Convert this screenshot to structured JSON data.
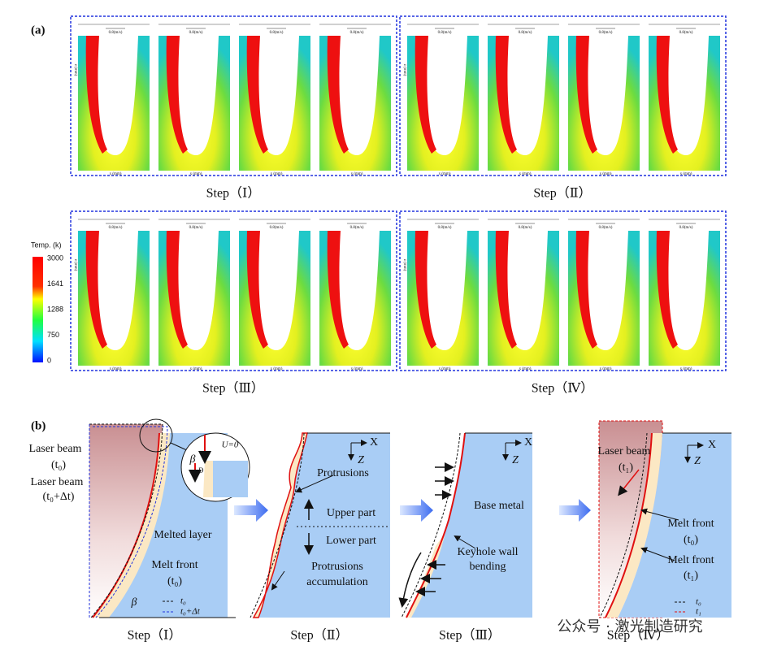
{
  "panel_a": {
    "label": "(a)",
    "steps": [
      "Step（Ⅰ）",
      "Step（Ⅱ）",
      "Step（Ⅲ）",
      "Step（Ⅳ）"
    ],
    "velocity_label": "0.8(m/s)",
    "x_axis": "x (mm)",
    "z_axis": "z (mm)",
    "colorbar": {
      "title": "Temp. (k)",
      "ticks": [
        3000,
        1641,
        1288,
        750,
        0
      ]
    }
  },
  "panel_b": {
    "label": "(b)",
    "steps": [
      "Step（Ⅰ）",
      "Step（Ⅱ）",
      "Step（Ⅲ）",
      "Step（Ⅳ）"
    ],
    "d1": {
      "laser_beam_t0": [
        "Laser beam",
        "(t₀)"
      ],
      "laser_beam_t0dt": [
        "Laser beam",
        "(t₀+Δt)"
      ],
      "melted_layer": "Melted layer",
      "melt_front": [
        "Melt front",
        "(t₀)"
      ],
      "beta": "β",
      "inset_beta": "β",
      "inset_d": "D",
      "inset_u": "U=0",
      "legend": [
        "t₀",
        "t₀+Δt"
      ]
    },
    "d2": {
      "axis_x": "X",
      "axis_z": "Z",
      "protrusions": "Protrusions",
      "upper": "Upper part",
      "lower": "Lower part",
      "accumulation": [
        "Protrusions",
        "accumulation"
      ]
    },
    "d3": {
      "axis_x": "X",
      "axis_z": "Z",
      "base_metal": "Base metal",
      "bending": [
        "Keyhole wall",
        "bending"
      ]
    },
    "d4": {
      "laser_beam": [
        "Laser beam",
        "(t₁)"
      ],
      "axis_x": "X",
      "axis_z": "Z",
      "melt_front_t0": [
        "Melt front",
        "(t₀)"
      ],
      "melt_front_t1": [
        "Melt front",
        "(t₁)"
      ],
      "legend": [
        "t₀",
        "t₁"
      ]
    }
  },
  "watermark": "公众号 · 激光制造研究"
}
